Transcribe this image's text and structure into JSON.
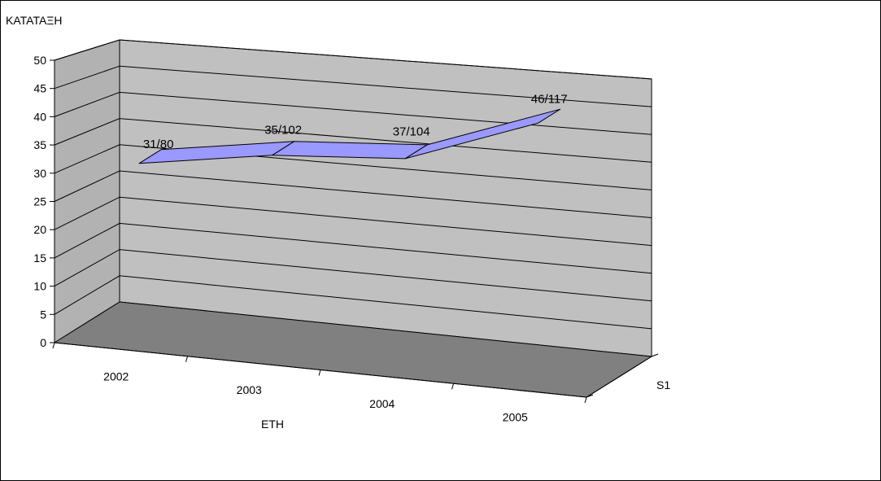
{
  "colors": {
    "back_wall": "#c0c0c0",
    "left_wall": "#b2b2b2",
    "floor": "#808080",
    "gridline": "#000000",
    "ribbon_fill": "#9999ff",
    "ribbon_stroke": "#000000"
  },
  "chart_data": {
    "type": "line",
    "style": "3d-ribbon",
    "categories": [
      "2002",
      "2003",
      "2004",
      "2005"
    ],
    "series": [
      {
        "name": "S1",
        "values": [
          31,
          35,
          37,
          46
        ],
        "data_labels": [
          "31/80",
          "35/102",
          "37/104",
          "46/117"
        ]
      }
    ],
    "ylabel": "ΚΑΤΑΤΑΞΗ",
    "xlabel": "ΕΤΗ",
    "series_axis_label": "S1",
    "ylim": [
      0,
      50
    ],
    "yticks": [
      0,
      5,
      10,
      15,
      20,
      25,
      30,
      35,
      40,
      45,
      50
    ],
    "grid": true,
    "legend": "none"
  }
}
